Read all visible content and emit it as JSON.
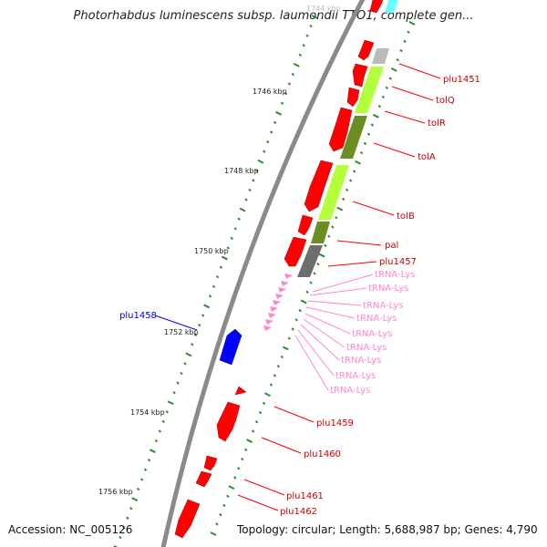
{
  "header": {
    "title": "Photorhabdus luminescens subsp. laumondii TTO1, complete gen..."
  },
  "footer": {
    "accession": "Accession: NC_005126",
    "topology": "Topology: circular; Length: 5,688,987 bp; Genes: 4,790"
  },
  "colors": {
    "backbone": "#8a8a8a",
    "gene_forward": "#ff0000",
    "gene_reverse": "#0000ff",
    "trna": "#ff88cc",
    "tick": "#2e8b2e",
    "cog_light_green": "#b4ff3c",
    "cog_dark_green": "#6b8e23",
    "cog_gray": "#6e6e6e",
    "cog_light_gray": "#bbbbbb",
    "cog_cyan": "#66ffff"
  },
  "axis": {
    "labels": [
      "1744 kbp",
      "1746 kbp",
      "1748 kbp",
      "1750 kbp",
      "1752 kbp",
      "1754 kbp",
      "1756 kbp"
    ]
  },
  "features": {
    "plu1451": "plu1451",
    "tolQ": "tolQ",
    "tolR": "tolR",
    "tolA": "tolA",
    "tolB": "tolB",
    "pal": "pal",
    "plu1457": "plu1457",
    "plu1458": "plu1458",
    "trna": "tRNA-Lys",
    "plu1459": "plu1459",
    "plu1460": "plu1460",
    "plu1461": "plu1461",
    "plu1462": "plu1462"
  }
}
